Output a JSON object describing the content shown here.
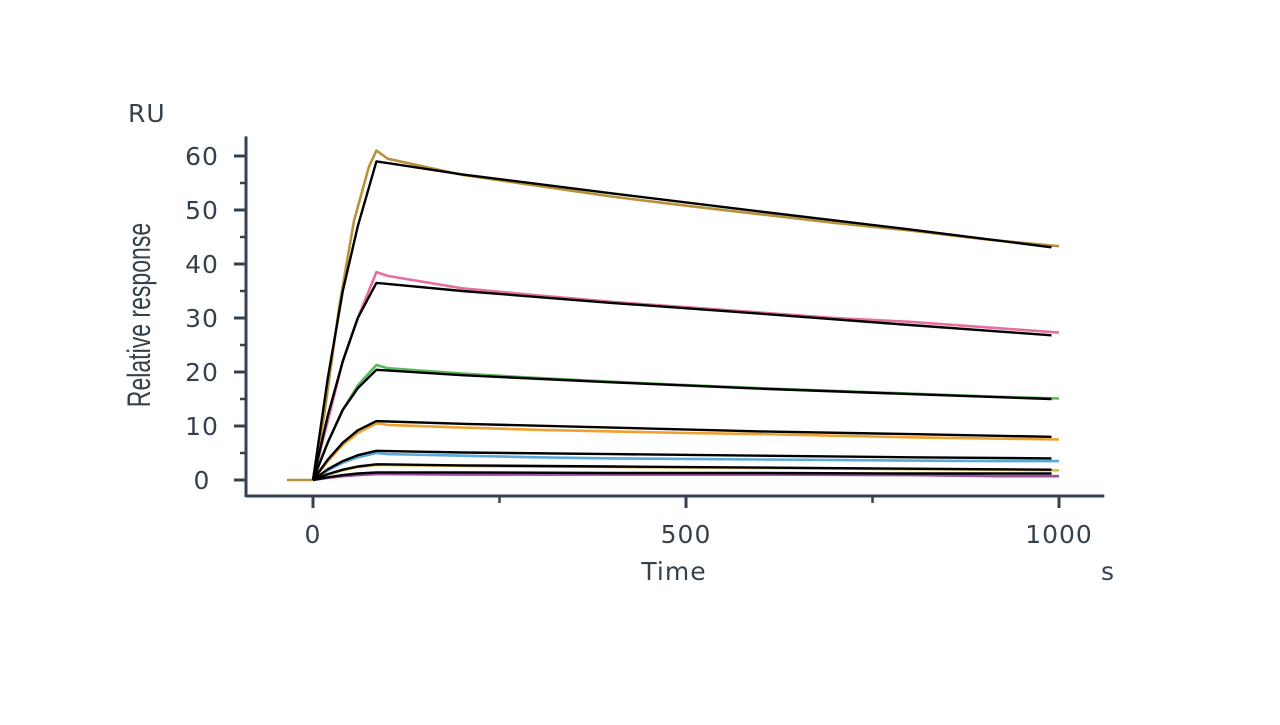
{
  "chart_data": {
    "type": "line",
    "title": "",
    "xlabel": "Time",
    "x_unit": "s",
    "ylabel": "Relative response",
    "y_unit": "RU",
    "xlim": [
      -70,
      1050
    ],
    "ylim": [
      -3,
      64
    ],
    "x_ticks": [
      0,
      500,
      1000
    ],
    "y_ticks": [
      0,
      10,
      20,
      30,
      40,
      50,
      60
    ],
    "grid": false,
    "legend": "none",
    "axis_color": "#34424f",
    "fit_color": "#000000",
    "series": [
      {
        "color": "#b8923a",
        "data": [
          [
            -35,
            0
          ],
          [
            0,
            0
          ],
          [
            15,
            12
          ],
          [
            35,
            32
          ],
          [
            55,
            48
          ],
          [
            75,
            58
          ],
          [
            85,
            61
          ],
          [
            100,
            59.5
          ],
          [
            200,
            56.5
          ],
          [
            300,
            54.5
          ],
          [
            400,
            52.5
          ],
          [
            500,
            50.8
          ],
          [
            600,
            49.2
          ],
          [
            700,
            47.6
          ],
          [
            800,
            46.2
          ],
          [
            900,
            44.6
          ],
          [
            1000,
            43.3
          ]
        ],
        "fit": [
          [
            0,
            0
          ],
          [
            20,
            19
          ],
          [
            40,
            35
          ],
          [
            60,
            47
          ],
          [
            85,
            59
          ],
          [
            200,
            56.6
          ],
          [
            400,
            53.1
          ],
          [
            600,
            49.7
          ],
          [
            800,
            46.4
          ],
          [
            990,
            43.1
          ]
        ]
      },
      {
        "color": "#e4709f",
        "data": [
          [
            0,
            0
          ],
          [
            20,
            11
          ],
          [
            40,
            22
          ],
          [
            60,
            30
          ],
          [
            85,
            38.5
          ],
          [
            100,
            37.8
          ],
          [
            200,
            35.5
          ],
          [
            300,
            34.2
          ],
          [
            400,
            33
          ],
          [
            500,
            32
          ],
          [
            600,
            31
          ],
          [
            700,
            30
          ],
          [
            800,
            29.3
          ],
          [
            900,
            28.3
          ],
          [
            1000,
            27.3
          ]
        ],
        "fit": [
          [
            0,
            0
          ],
          [
            20,
            12
          ],
          [
            40,
            22
          ],
          [
            60,
            30
          ],
          [
            85,
            36.5
          ],
          [
            200,
            35
          ],
          [
            400,
            32.8
          ],
          [
            600,
            30.8
          ],
          [
            800,
            28.7
          ],
          [
            990,
            26.8
          ]
        ]
      },
      {
        "color": "#5cb85c",
        "data": [
          [
            0,
            0
          ],
          [
            20,
            7
          ],
          [
            40,
            13
          ],
          [
            60,
            17.5
          ],
          [
            85,
            21.3
          ],
          [
            100,
            20.7
          ],
          [
            200,
            19.7
          ],
          [
            300,
            18.9
          ],
          [
            400,
            18.2
          ],
          [
            500,
            17.6
          ],
          [
            600,
            17
          ],
          [
            700,
            16.5
          ],
          [
            800,
            16
          ],
          [
            900,
            15.5
          ],
          [
            1000,
            15.1
          ]
        ],
        "fit": [
          [
            0,
            0
          ],
          [
            20,
            7
          ],
          [
            40,
            13
          ],
          [
            60,
            17
          ],
          [
            85,
            20.4
          ],
          [
            200,
            19.4
          ],
          [
            400,
            18.1
          ],
          [
            600,
            16.9
          ],
          [
            800,
            15.9
          ],
          [
            990,
            15
          ]
        ]
      },
      {
        "color": "#f0a030",
        "data": [
          [
            0,
            0
          ],
          [
            20,
            3.5
          ],
          [
            40,
            6.5
          ],
          [
            60,
            8.7
          ],
          [
            85,
            10.5
          ],
          [
            100,
            10.2
          ],
          [
            200,
            9.7
          ],
          [
            300,
            9.3
          ],
          [
            400,
            9
          ],
          [
            500,
            8.7
          ],
          [
            600,
            8.5
          ],
          [
            700,
            8.2
          ],
          [
            800,
            7.9
          ],
          [
            900,
            7.7
          ],
          [
            1000,
            7.5
          ]
        ],
        "fit": [
          [
            0,
            0
          ],
          [
            20,
            3.8
          ],
          [
            40,
            6.9
          ],
          [
            60,
            9.2
          ],
          [
            85,
            10.9
          ],
          [
            200,
            10.4
          ],
          [
            400,
            9.7
          ],
          [
            600,
            9
          ],
          [
            800,
            8.5
          ],
          [
            990,
            8
          ]
        ]
      },
      {
        "color": "#5aa9dc",
        "data": [
          [
            0,
            0
          ],
          [
            20,
            1.8
          ],
          [
            40,
            3.2
          ],
          [
            60,
            4.2
          ],
          [
            85,
            5
          ],
          [
            100,
            4.8
          ],
          [
            200,
            4.5
          ],
          [
            300,
            4.2
          ],
          [
            400,
            4
          ],
          [
            500,
            3.9
          ],
          [
            600,
            3.8
          ],
          [
            700,
            3.7
          ],
          [
            800,
            3.6
          ],
          [
            900,
            3.5
          ],
          [
            1000,
            3.5
          ]
        ],
        "fit": [
          [
            0,
            0
          ],
          [
            20,
            2
          ],
          [
            40,
            3.5
          ],
          [
            60,
            4.6
          ],
          [
            85,
            5.4
          ],
          [
            200,
            5.1
          ],
          [
            400,
            4.8
          ],
          [
            600,
            4.5
          ],
          [
            800,
            4.2
          ],
          [
            990,
            4
          ]
        ]
      },
      {
        "color": "#d6c04a",
        "data": [
          [
            0,
            0
          ],
          [
            20,
            1
          ],
          [
            40,
            1.8
          ],
          [
            60,
            2.4
          ],
          [
            85,
            2.8
          ],
          [
            200,
            2.6
          ],
          [
            400,
            2.4
          ],
          [
            600,
            2.2
          ],
          [
            800,
            2
          ],
          [
            1000,
            1.8
          ]
        ],
        "fit": [
          [
            0,
            0
          ],
          [
            20,
            1.1
          ],
          [
            40,
            1.9
          ],
          [
            60,
            2.5
          ],
          [
            85,
            2.9
          ],
          [
            200,
            2.7
          ],
          [
            400,
            2.5
          ],
          [
            600,
            2.3
          ],
          [
            800,
            2.1
          ],
          [
            990,
            1.9
          ]
        ]
      },
      {
        "color": "#9a4fa3",
        "data": [
          [
            0,
            0
          ],
          [
            20,
            0.4
          ],
          [
            40,
            0.7
          ],
          [
            60,
            0.9
          ],
          [
            85,
            1.1
          ],
          [
            200,
            1
          ],
          [
            400,
            1
          ],
          [
            600,
            1
          ],
          [
            800,
            0.9
          ],
          [
            920,
            0.7
          ],
          [
            1000,
            0.7
          ]
        ],
        "fit": [
          [
            0,
            0
          ],
          [
            20,
            0.5
          ],
          [
            40,
            0.9
          ],
          [
            60,
            1.2
          ],
          [
            85,
            1.4
          ],
          [
            200,
            1.4
          ],
          [
            400,
            1.3
          ],
          [
            600,
            1.3
          ],
          [
            800,
            1.2
          ],
          [
            990,
            1.2
          ]
        ]
      }
    ]
  }
}
